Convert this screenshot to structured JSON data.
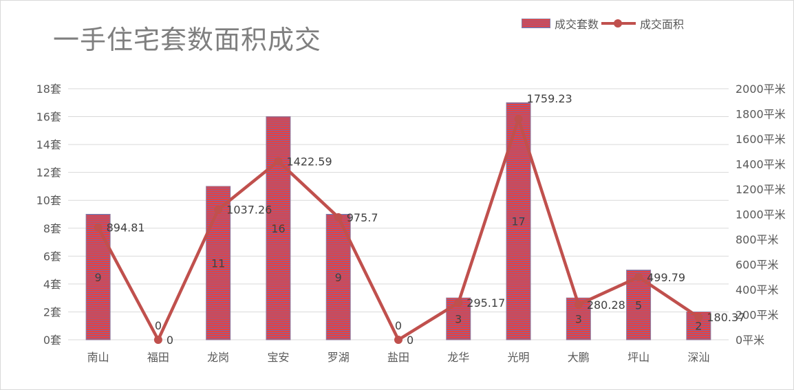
{
  "chart_data": {
    "type": "bar+line",
    "title": "一手住宅套数面积成交",
    "categories": [
      "南山",
      "福田",
      "龙岗",
      "宝安",
      "罗湖",
      "盐田",
      "龙华",
      "光明",
      "大鹏",
      "坪山",
      "深汕"
    ],
    "series": [
      {
        "name": "成交套数",
        "type": "bar",
        "axis": "left",
        "values": [
          9,
          0,
          11,
          16,
          9,
          0,
          3,
          17,
          3,
          5,
          2
        ],
        "labels": [
          "9",
          "",
          "11",
          "16",
          "9",
          "",
          "3",
          "17",
          "3",
          "5",
          "2"
        ],
        "color": "#e8413f",
        "stripe_color": "#8064a2"
      },
      {
        "name": "成交面积",
        "type": "line",
        "axis": "right",
        "values": [
          894.81,
          0,
          1037.26,
          1422.59,
          975.7,
          0,
          295.17,
          1759.23,
          280.28,
          499.79,
          180.37
        ],
        "labels": [
          "894.81",
          "0",
          "1037.26",
          "1422.59",
          "975.7",
          "0",
          "295.17",
          "1759.23",
          "280.28",
          "499.79",
          "180.37"
        ],
        "color": "#c0504d"
      }
    ],
    "y_left": {
      "min": 0,
      "max": 18,
      "step": 2,
      "tick_labels": [
        "0套",
        "2套",
        "4套",
        "6套",
        "8套",
        "10套",
        "12套",
        "14套",
        "16套",
        "18套"
      ]
    },
    "y_right": {
      "min": 0,
      "max": 2000,
      "step": 200,
      "tick_labels": [
        "0平米",
        "200平米",
        "400平米",
        "600平米",
        "800平米",
        "1000平米",
        "1200平米",
        "1400平米",
        "1600平米",
        "1800平米",
        "2000平米"
      ]
    },
    "bar_zero_labels": [
      "0",
      "0"
    ],
    "grid": true,
    "legend_position": "top-right",
    "gridline_color": "#d9d9d9"
  }
}
